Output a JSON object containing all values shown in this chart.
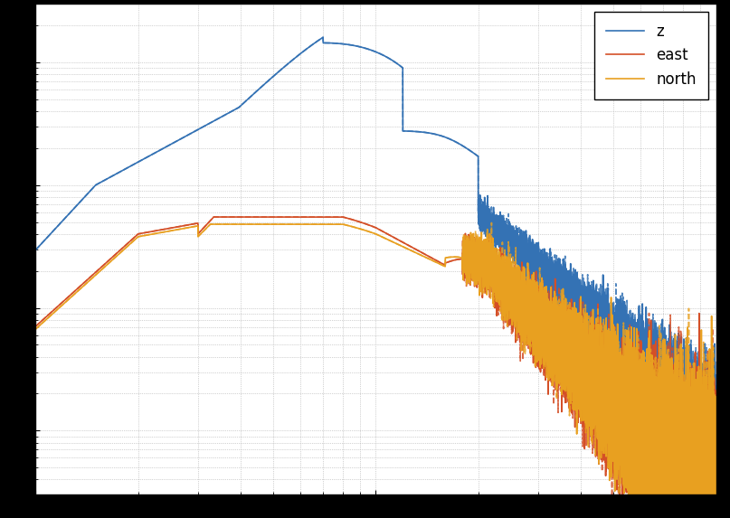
{
  "colors": {
    "z": "#3472b4",
    "east": "#d44f27",
    "north": "#e8a020"
  },
  "legend": [
    "z",
    "east",
    "north"
  ],
  "background_color": "#ffffff",
  "xlim": [
    1,
    100
  ],
  "ylim": [
    1e-10,
    0.0001
  ],
  "grid_color": "#aaaaaa",
  "lw": 1.2,
  "seed1": 1,
  "seed2": 99
}
